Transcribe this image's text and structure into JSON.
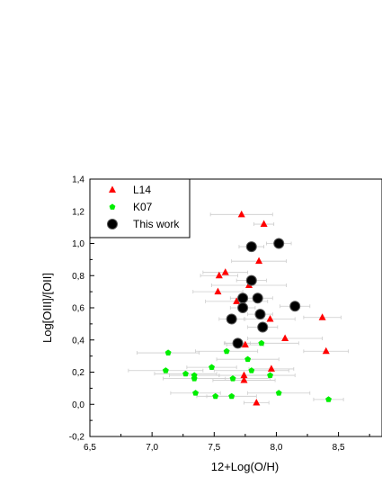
{
  "chart_data": {
    "type": "scatter",
    "xlabel": "12+Log(O/H)",
    "ylabel": "Log[OIII]/[OII]",
    "xlim": [
      6.5,
      8.85
    ],
    "ylim": [
      -0.2,
      1.4
    ],
    "x_ticks": [
      "6,5",
      "7,0",
      "7,5",
      "8,0",
      "8,5"
    ],
    "x_tick_values": [
      6.5,
      7.0,
      7.5,
      8.0,
      8.5
    ],
    "y_ticks": [
      "-0,2",
      "0,0",
      "0,2",
      "0,4",
      "0,6",
      "0,8",
      "1,0",
      "1,2",
      "1,4"
    ],
    "y_tick_values": [
      -0.2,
      0.0,
      0.2,
      0.4,
      0.6,
      0.8,
      1.0,
      1.2,
      1.4
    ],
    "grid": false,
    "legend_position": "top-left",
    "series": [
      {
        "name": "L14",
        "marker": "triangle",
        "color": "#ff0000",
        "points": [
          {
            "x": 7.72,
            "y": 1.18,
            "xerr": 0.25
          },
          {
            "x": 7.9,
            "y": 1.12,
            "xerr": 0.08
          },
          {
            "x": 7.86,
            "y": 0.89,
            "xerr": 0.22
          },
          {
            "x": 7.54,
            "y": 0.8,
            "xerr": 0.15
          },
          {
            "x": 7.59,
            "y": 0.82,
            "xerr": 0.18
          },
          {
            "x": 7.78,
            "y": 0.74,
            "xerr": 0.3
          },
          {
            "x": 7.53,
            "y": 0.7,
            "xerr": 0.2
          },
          {
            "x": 7.68,
            "y": 0.64,
            "xerr": 0.25
          },
          {
            "x": 7.95,
            "y": 0.53,
            "xerr": 0.2
          },
          {
            "x": 8.37,
            "y": 0.54,
            "xerr": 0.15
          },
          {
            "x": 8.07,
            "y": 0.41,
            "xerr": 0.3
          },
          {
            "x": 8.4,
            "y": 0.33,
            "xerr": 0.18
          },
          {
            "x": 7.75,
            "y": 0.37,
            "xerr": 0.15
          },
          {
            "x": 7.74,
            "y": 0.18,
            "xerr": 0.2
          },
          {
            "x": 7.74,
            "y": 0.15,
            "xerr": 0.25
          },
          {
            "x": 7.96,
            "y": 0.22,
            "xerr": 0.18
          },
          {
            "x": 7.84,
            "y": 0.01,
            "xerr": 0.1
          }
        ]
      },
      {
        "name": "K07",
        "marker": "pentagon",
        "color": "#00ee00",
        "points": [
          {
            "x": 7.13,
            "y": 0.32,
            "xerr": 0.25
          },
          {
            "x": 7.11,
            "y": 0.21,
            "xerr": 0.3
          },
          {
            "x": 7.27,
            "y": 0.19,
            "xerr": 0.25
          },
          {
            "x": 7.34,
            "y": 0.18,
            "xerr": 0.2
          },
          {
            "x": 7.34,
            "y": 0.16,
            "xerr": 0.25
          },
          {
            "x": 7.48,
            "y": 0.23,
            "xerr": 0.2
          },
          {
            "x": 7.35,
            "y": 0.07,
            "xerr": 0.2
          },
          {
            "x": 7.51,
            "y": 0.05,
            "xerr": 0.15
          },
          {
            "x": 7.64,
            "y": 0.05,
            "xerr": 0.2
          },
          {
            "x": 7.6,
            "y": 0.33,
            "xerr": 0.25
          },
          {
            "x": 7.65,
            "y": 0.16,
            "xerr": 0.3
          },
          {
            "x": 7.77,
            "y": 0.28,
            "xerr": 0.25
          },
          {
            "x": 7.8,
            "y": 0.21,
            "xerr": 0.3
          },
          {
            "x": 7.88,
            "y": 0.38,
            "xerr": 0.3
          },
          {
            "x": 7.95,
            "y": 0.18,
            "xerr": 0.2
          },
          {
            "x": 8.02,
            "y": 0.07,
            "xerr": 0.25
          },
          {
            "x": 8.42,
            "y": 0.03,
            "xerr": 0.12
          }
        ]
      },
      {
        "name": "This work",
        "marker": "circle",
        "color": "#000000",
        "points": [
          {
            "x": 8.02,
            "y": 1.0,
            "xerr": 0.1
          },
          {
            "x": 7.8,
            "y": 0.98,
            "xerr": 0.1
          },
          {
            "x": 7.8,
            "y": 0.77,
            "xerr": 0.12
          },
          {
            "x": 7.73,
            "y": 0.66,
            "xerr": 0.1
          },
          {
            "x": 7.85,
            "y": 0.66,
            "xerr": 0.12
          },
          {
            "x": 7.73,
            "y": 0.6,
            "xerr": 0.1
          },
          {
            "x": 8.15,
            "y": 0.61,
            "xerr": 0.12
          },
          {
            "x": 7.64,
            "y": 0.53,
            "xerr": 0.1
          },
          {
            "x": 7.87,
            "y": 0.56,
            "xerr": 0.1
          },
          {
            "x": 7.89,
            "y": 0.48,
            "xerr": 0.12
          },
          {
            "x": 7.69,
            "y": 0.38,
            "xerr": 0.1
          }
        ]
      }
    ]
  }
}
